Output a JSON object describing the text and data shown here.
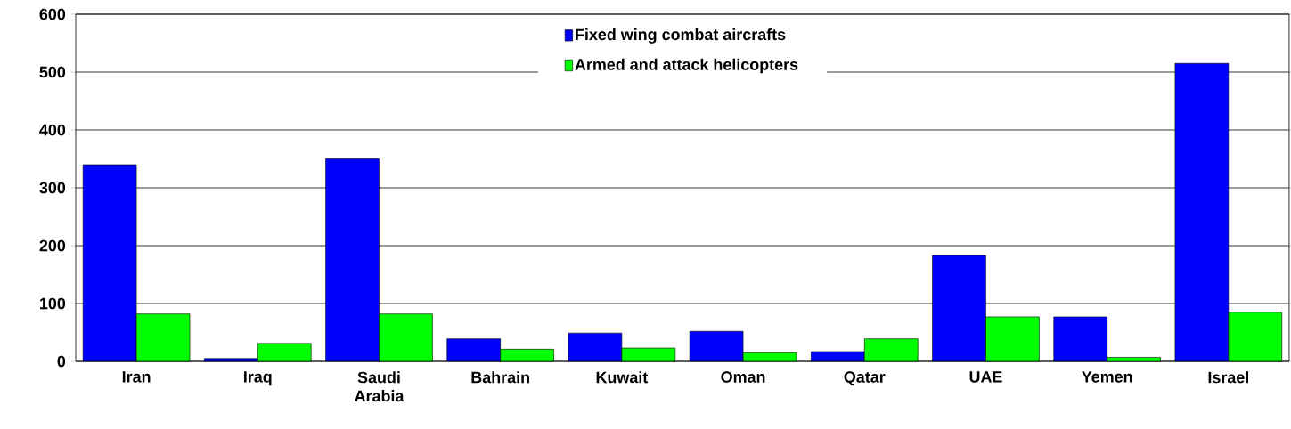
{
  "chart_data": {
    "type": "bar",
    "categories": [
      "Iran",
      "Iraq",
      "Saudi Arabia",
      "Bahrain",
      "Kuwait",
      "Oman",
      "Qatar",
      "UAE",
      "Yemen",
      "Israel"
    ],
    "series": [
      {
        "name": "Fixed wing combat aircrafts",
        "color": "#0000ff",
        "values": [
          340,
          5,
          350,
          39,
          49,
          52,
          17,
          183,
          77,
          515
        ]
      },
      {
        "name": "Armed and attack helicopters",
        "color": "#00ff00",
        "values": [
          82,
          31,
          82,
          21,
          23,
          15,
          39,
          77,
          7,
          85
        ]
      }
    ],
    "ylim": [
      0,
      600
    ],
    "yticks": [
      0,
      100,
      200,
      300,
      400,
      500,
      600
    ],
    "grid": "y",
    "legend": "top"
  }
}
